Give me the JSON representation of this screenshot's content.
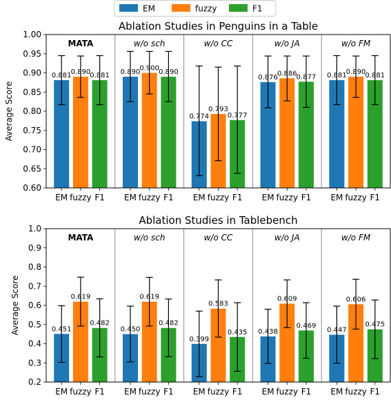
{
  "legend": {
    "entries": [
      {
        "label": "EM",
        "color": "#1f77b4"
      },
      {
        "label": "fuzzy",
        "color": "#ff7f0e"
      },
      {
        "label": "F1",
        "color": "#2ca02c"
      }
    ]
  },
  "chart_data": [
    {
      "type": "bar",
      "title": "Ablation Studies in Penguins in a Table",
      "ylabel": "Average Score",
      "ylim": [
        0.6,
        1.0
      ],
      "yticks": [
        "0.60",
        "0.65",
        "0.70",
        "0.75",
        "0.80",
        "0.85",
        "0.90",
        "0.95",
        "1.00"
      ],
      "grid": false,
      "legend_position": "top-center",
      "metrics": [
        "EM",
        "fuzzy",
        "F1"
      ],
      "groups": [
        {
          "label": "MATA",
          "bold": true,
          "italic": false,
          "values": [
            0.881,
            0.89,
            0.881
          ],
          "value_labels": [
            "0.881",
            "0.890",
            "0.881"
          ],
          "err_low": [
            0.817,
            0.836,
            0.817
          ],
          "err_high": [
            0.945,
            0.944,
            0.945
          ]
        },
        {
          "label": "w/o sch",
          "bold": false,
          "italic": true,
          "values": [
            0.89,
            0.9,
            0.89
          ],
          "value_labels": [
            "0.890",
            "0.900",
            "0.890"
          ],
          "err_low": [
            0.825,
            0.845,
            0.825
          ],
          "err_high": [
            0.956,
            0.956,
            0.956
          ]
        },
        {
          "label": "w/o CC",
          "bold": false,
          "italic": true,
          "values": [
            0.774,
            0.793,
            0.777
          ],
          "value_labels": [
            "0.774",
            "0.793",
            "0.777"
          ],
          "err_low": [
            0.632,
            0.671,
            0.638
          ],
          "err_high": [
            0.918,
            0.915,
            0.918
          ]
        },
        {
          "label": "w/o JA",
          "bold": false,
          "italic": true,
          "values": [
            0.876,
            0.886,
            0.877
          ],
          "value_labels": [
            "0.876",
            "0.886",
            "0.877"
          ],
          "err_low": [
            0.809,
            0.827,
            0.81
          ],
          "err_high": [
            0.944,
            0.944,
            0.944
          ]
        },
        {
          "label": "w/o FM",
          "bold": false,
          "italic": true,
          "values": [
            0.881,
            0.89,
            0.881
          ],
          "value_labels": [
            "0.881",
            "0.890",
            "0.881"
          ],
          "err_low": [
            0.817,
            0.836,
            0.817
          ],
          "err_high": [
            0.945,
            0.944,
            0.945
          ]
        }
      ]
    },
    {
      "type": "bar",
      "title": "Ablation Studies in Tablebench",
      "ylabel": "Average Score",
      "ylim": [
        0.2,
        1.0
      ],
      "yticks": [
        "0.2",
        "0.3",
        "0.4",
        "0.5",
        "0.6",
        "0.7",
        "0.8",
        "0.9",
        "1.0"
      ],
      "grid": false,
      "metrics": [
        "EM",
        "fuzzy",
        "F1"
      ],
      "groups": [
        {
          "label": "MATA",
          "bold": true,
          "italic": false,
          "values": [
            0.451,
            0.619,
            0.482
          ],
          "value_labels": [
            "0.451",
            "0.619",
            "0.482"
          ],
          "err_low": [
            0.303,
            0.492,
            0.331
          ],
          "err_high": [
            0.598,
            0.747,
            0.634
          ]
        },
        {
          "label": "w/o sch",
          "bold": false,
          "italic": true,
          "values": [
            0.45,
            0.619,
            0.482
          ],
          "value_labels": [
            "0.450",
            "0.619",
            "0.482"
          ],
          "err_low": [
            0.305,
            0.492,
            0.332
          ],
          "err_high": [
            0.596,
            0.746,
            0.633
          ]
        },
        {
          "label": "w/o CC",
          "bold": false,
          "italic": true,
          "values": [
            0.399,
            0.583,
            0.435
          ],
          "value_labels": [
            "0.399",
            "0.583",
            "0.435"
          ],
          "err_low": [
            0.228,
            0.434,
            0.256
          ],
          "err_high": [
            0.57,
            0.733,
            0.614
          ]
        },
        {
          "label": "w/o JA",
          "bold": false,
          "italic": true,
          "values": [
            0.438,
            0.609,
            0.469
          ],
          "value_labels": [
            "0.438",
            "0.609",
            "0.469"
          ],
          "err_low": [
            0.297,
            0.484,
            0.324
          ],
          "err_high": [
            0.58,
            0.733,
            0.614
          ]
        },
        {
          "label": "w/o FM",
          "bold": false,
          "italic": true,
          "values": [
            0.447,
            0.606,
            0.475
          ],
          "value_labels": [
            "0.447",
            "0.606",
            "0.475"
          ],
          "err_low": [
            0.298,
            0.476,
            0.322
          ],
          "err_high": [
            0.596,
            0.736,
            0.628
          ]
        }
      ]
    }
  ]
}
